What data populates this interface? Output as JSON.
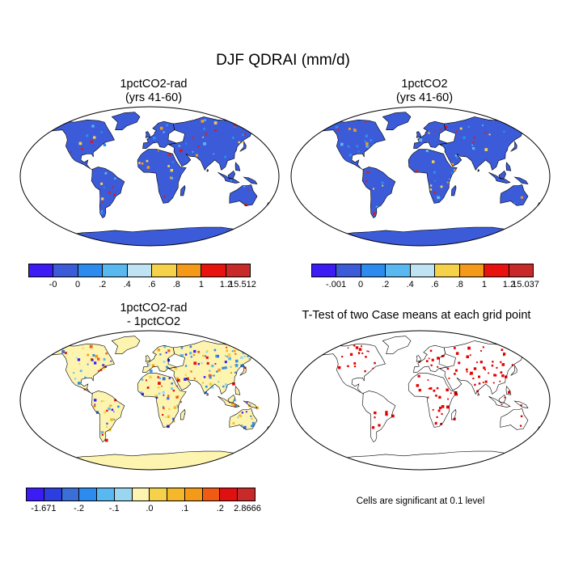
{
  "title": "DJF QDRAI (mm/d)",
  "panels": {
    "top_left": {
      "title_line1": "1pctCO2-rad",
      "title_line2": "(yrs 41-60)"
    },
    "top_right": {
      "title_line1": "1pctCO2",
      "title_line2": "(yrs 41-60)"
    },
    "bottom_left": {
      "title_line1": "1pctCO2-rad",
      "title_line2": "- 1pctCO2"
    },
    "bottom_right": {
      "title": "T-Test of two Case means at each grid point"
    }
  },
  "colorbars": {
    "top_left": {
      "colors": [
        "#3b1cf5",
        "#3b5bd9",
        "#2b8cee",
        "#5ab8f0",
        "#bfe3f2",
        "#f6d24a",
        "#f49a18",
        "#e8120e",
        "#c82a2a"
      ],
      "labels": [
        "-0",
        "0",
        ".2",
        ".4",
        ".6",
        ".8",
        "1",
        "1.2",
        "15.512"
      ]
    },
    "top_right": {
      "colors": [
        "#3b1cf5",
        "#3b5bd9",
        "#2b8cee",
        "#5ab8f0",
        "#bfe3f2",
        "#f6d24a",
        "#f49a18",
        "#e8120e",
        "#c82a2a"
      ],
      "labels": [
        ".001",
        "0",
        ".2",
        ".4",
        ".6",
        ".8",
        "1",
        "1.2",
        "15.037"
      ],
      "first_label_prefix": "-"
    },
    "bottom_left": {
      "colors": [
        "#3b1cf5",
        "#2d3ee0",
        "#3b6fd8",
        "#2b8cee",
        "#5ab8f0",
        "#9ad6f0",
        "#fdf4b0",
        "#f6d24a",
        "#f4b82a",
        "#f49a18",
        "#f05a12",
        "#e01010",
        "#c82a2a"
      ],
      "labels": [
        "-1.671",
        "-.2",
        "-.1",
        ".0",
        ".1",
        ".2",
        "2.8666"
      ]
    }
  },
  "significance_note": "Cells are significant at 0.1 level",
  "map_colors": {
    "ocean": "#ffffff",
    "coast": "#000000",
    "significant": "#e60000"
  }
}
